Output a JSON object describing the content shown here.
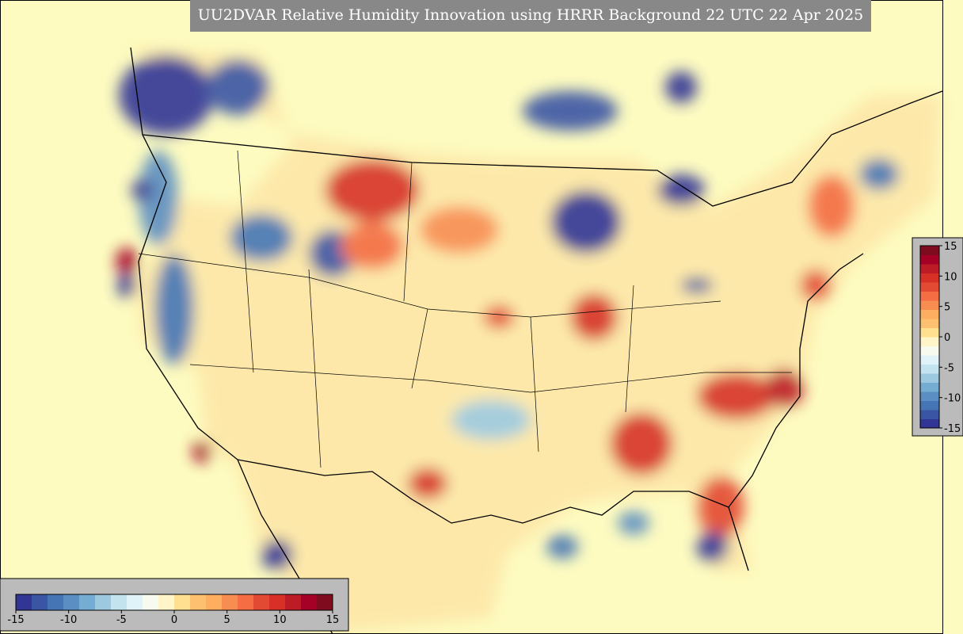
{
  "title": "UU2DVAR Relative Humidity Innovation using HRRR Background 22 UTC 22 Apr 2025",
  "colorbar": {
    "lim": [
      -15,
      15
    ],
    "ticks": [
      -15,
      -10,
      -5,
      0,
      5,
      10,
      15
    ],
    "colors": [
      "#313695",
      "#3a55a4",
      "#4575b4",
      "#5b8ec2",
      "#74add1",
      "#9cc9e0",
      "#c3e3ee",
      "#e0f3f8",
      "#f7fbef",
      "#fff5c8",
      "#fee090",
      "#fdc070",
      "#fdae61",
      "#f88d52",
      "#f46d43",
      "#e34a33",
      "#d73027",
      "#bd1c26",
      "#a50026",
      "#7f0b1f"
    ]
  }
}
